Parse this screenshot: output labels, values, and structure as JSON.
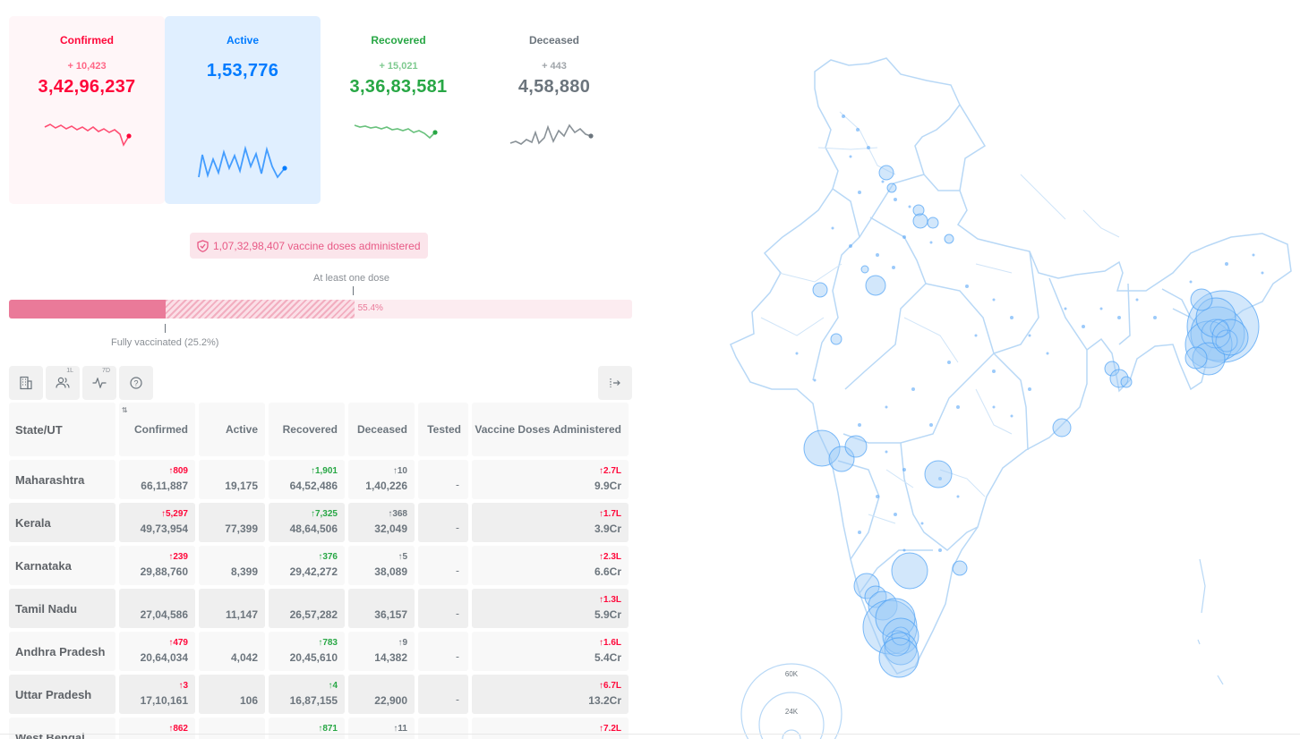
{
  "stats": {
    "confirmed": {
      "title": "Confirmed",
      "delta": "+ 10,423",
      "total": "3,42,96,237",
      "color": "#ff073a"
    },
    "active": {
      "title": "Active",
      "delta": "",
      "total": "1,53,776",
      "color": "#007bff"
    },
    "recovered": {
      "title": "Recovered",
      "delta": "+ 15,021",
      "total": "3,36,83,581",
      "color": "#28a745"
    },
    "deceased": {
      "title": "Deceased",
      "delta": "+ 443",
      "total": "4,58,880",
      "color": "#6c757d"
    }
  },
  "vaccine": {
    "doses_text": "1,07,32,98,407 vaccine doses administered",
    "at_least_one_label": "At least one dose",
    "at_least_one_pct": "55.4%",
    "at_least_one_value": 55.4,
    "fully_label": "Fully vaccinated (25.2%)",
    "fully_value": 25.2
  },
  "toolbar": {
    "per_capita_badge": "1L",
    "trend_badge": "7D",
    "help_icon": "?"
  },
  "table": {
    "headers": [
      "State/UT",
      "Confirmed",
      "Active",
      "Recovered",
      "Deceased",
      "Tested",
      "Vaccine Doses Administered"
    ],
    "rows": [
      {
        "state": "Maharashtra",
        "confirmed_delta": "↑809",
        "confirmed": "66,11,887",
        "active": "19,175",
        "recovered_delta": "↑1,901",
        "recovered": "64,52,486",
        "deceased_delta": "↑10",
        "deceased": "1,40,226",
        "tested": "-",
        "vaccine_delta": "↑2.7L",
        "vaccine": "9.9Cr"
      },
      {
        "state": "Kerala",
        "confirmed_delta": "↑5,297",
        "confirmed": "49,73,954",
        "active": "77,399",
        "recovered_delta": "↑7,325",
        "recovered": "48,64,506",
        "deceased_delta": "↑368",
        "deceased": "32,049",
        "tested": "-",
        "vaccine_delta": "↑1.7L",
        "vaccine": "3.9Cr"
      },
      {
        "state": "Karnataka",
        "confirmed_delta": "↑239",
        "confirmed": "29,88,760",
        "active": "8,399",
        "recovered_delta": "↑376",
        "recovered": "29,42,272",
        "deceased_delta": "↑5",
        "deceased": "38,089",
        "tested": "-",
        "vaccine_delta": "↑2.3L",
        "vaccine": "6.6Cr"
      },
      {
        "state": "Tamil Nadu",
        "confirmed_delta": "",
        "confirmed": "27,04,586",
        "active": "11,147",
        "recovered_delta": "",
        "recovered": "26,57,282",
        "deceased_delta": "",
        "deceased": "36,157",
        "tested": "-",
        "vaccine_delta": "↑1.3L",
        "vaccine": "5.9Cr"
      },
      {
        "state": "Andhra Pradesh",
        "confirmed_delta": "↑479",
        "confirmed": "20,64,034",
        "active": "4,042",
        "recovered_delta": "↑783",
        "recovered": "20,45,610",
        "deceased_delta": "↑9",
        "deceased": "14,382",
        "tested": "-",
        "vaccine_delta": "↑1.6L",
        "vaccine": "5.4Cr"
      },
      {
        "state": "Uttar Pradesh",
        "confirmed_delta": "↑3",
        "confirmed": "17,10,161",
        "active": "106",
        "recovered_delta": "↑4",
        "recovered": "16,87,155",
        "deceased_delta": "",
        "deceased": "22,900",
        "tested": "-",
        "vaccine_delta": "↑6.7L",
        "vaccine": "13.2Cr"
      },
      {
        "state": "West Bengal",
        "confirmed_delta": "↑862",
        "confirmed": "",
        "active": "",
        "recovered_delta": "↑871",
        "recovered": "",
        "deceased_delta": "↑11",
        "deceased": "",
        "tested": "",
        "vaccine_delta": "↑7.2L",
        "vaccine": ""
      }
    ]
  },
  "map": {
    "legend_large": "60K",
    "legend_small": "24K"
  }
}
